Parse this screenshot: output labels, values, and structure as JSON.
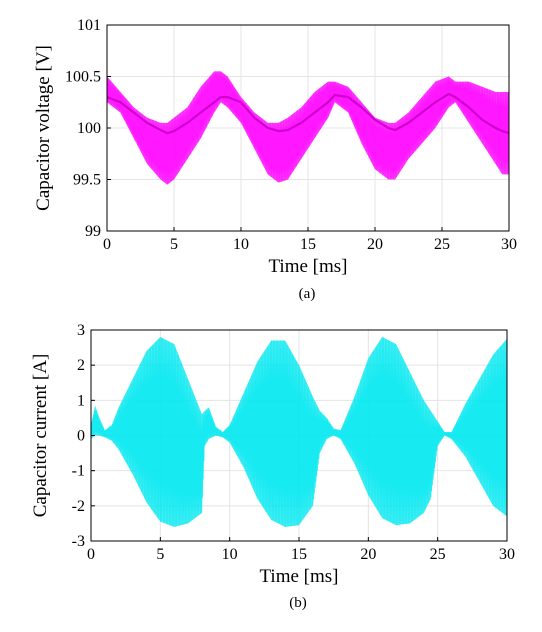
{
  "chart_data": [
    {
      "type": "line",
      "caption": "(a)",
      "xlabel": "Time [ms]",
      "ylabel": "Capacitor voltage [V]",
      "xlim": [
        0,
        30
      ],
      "ylim": [
        99,
        101
      ],
      "xticks": [
        0,
        5,
        10,
        15,
        20,
        25,
        30
      ],
      "xtick_labels": [
        "0",
        "5",
        "10",
        "15",
        "20",
        "25",
        "30"
      ],
      "yticks": [
        99,
        99.5,
        100,
        100.5,
        101
      ],
      "ytick_labels": [
        "99",
        "99.5",
        "100",
        "100.5",
        "101"
      ],
      "grid": true,
      "color": "#ff00ff",
      "series": [
        {
          "x": [
            0,
            1,
            2,
            3,
            4,
            4.5,
            5,
            6,
            7,
            8,
            8.5,
            9,
            10,
            11,
            12,
            12.8,
            13.5,
            14.5,
            15.5,
            16.5,
            17,
            18,
            19,
            20,
            21,
            21.5,
            22.5,
            23.5,
            24.5,
            25.5,
            26,
            27,
            28,
            29,
            29.5,
            30
          ],
          "upper": [
            100.5,
            100.35,
            100.2,
            100.1,
            100.05,
            100.05,
            100.1,
            100.2,
            100.4,
            100.55,
            100.55,
            100.5,
            100.3,
            100.15,
            100.05,
            100.05,
            100.1,
            100.2,
            100.35,
            100.45,
            100.45,
            100.4,
            100.25,
            100.1,
            100.05,
            100.05,
            100.15,
            100.3,
            100.45,
            100.5,
            100.45,
            100.45,
            100.4,
            100.35,
            100.35,
            100.35
          ],
          "center": [
            100.3,
            100.25,
            100.15,
            100.05,
            99.98,
            99.95,
            99.97,
            100.05,
            100.15,
            100.25,
            100.3,
            100.3,
            100.25,
            100.1,
            100.0,
            99.97,
            99.98,
            100.05,
            100.15,
            100.25,
            100.32,
            100.3,
            100.2,
            100.08,
            100.0,
            99.98,
            100.05,
            100.15,
            100.25,
            100.33,
            100.3,
            100.2,
            100.08,
            100.0,
            99.97,
            99.95
          ],
          "lower": [
            100.25,
            100.15,
            99.9,
            99.65,
            99.5,
            99.45,
            99.5,
            99.7,
            99.9,
            100.15,
            100.25,
            100.2,
            100.05,
            99.8,
            99.55,
            99.47,
            99.5,
            99.7,
            99.9,
            100.1,
            100.25,
            100.15,
            99.85,
            99.6,
            99.5,
            99.5,
            99.7,
            99.85,
            100.0,
            100.2,
            100.25,
            100.05,
            99.85,
            99.65,
            99.55,
            99.55
          ]
        }
      ]
    },
    {
      "type": "line",
      "caption": "(b)",
      "xlabel": "Time [ms]",
      "ylabel": "Capacitor current [A]",
      "xlim": [
        0,
        30
      ],
      "ylim": [
        -3,
        3
      ],
      "xticks": [
        0,
        5,
        10,
        15,
        20,
        25,
        30
      ],
      "xtick_labels": [
        "0",
        "5",
        "10",
        "15",
        "20",
        "25",
        "30"
      ],
      "yticks": [
        -3,
        -2,
        -1,
        0,
        1,
        2,
        3
      ],
      "ytick_labels": [
        "-3",
        "-2",
        "-1",
        "0",
        "1",
        "2",
        "3"
      ],
      "grid": true,
      "color": "#00e8f0",
      "series": [
        {
          "x": [
            0,
            0.3,
            0.6,
            1,
            1.5,
            2,
            3,
            4,
            5,
            6,
            7,
            8,
            8.2,
            8.5,
            9,
            9.5,
            10,
            11,
            12,
            13,
            14,
            15,
            16,
            16.5,
            17,
            17.5,
            18,
            19,
            20,
            21,
            22,
            23,
            24,
            24.5,
            25,
            25.5,
            26,
            27,
            28,
            29,
            30
          ],
          "upper": [
            0.3,
            0.85,
            0.5,
            0.15,
            0.3,
            0.8,
            1.6,
            2.4,
            2.8,
            2.6,
            1.6,
            0.6,
            0.7,
            0.8,
            0.25,
            0.1,
            0.3,
            1.2,
            2.1,
            2.7,
            2.7,
            2.0,
            1.1,
            0.7,
            0.5,
            0.2,
            0.15,
            1.1,
            2.2,
            2.8,
            2.6,
            1.8,
            1.0,
            0.7,
            0.4,
            0.1,
            0.1,
            0.9,
            1.6,
            2.3,
            2.75
          ],
          "lower": [
            -0.1,
            0.0,
            0.0,
            -0.05,
            -0.15,
            -0.4,
            -1.1,
            -1.9,
            -2.45,
            -2.6,
            -2.5,
            -2.2,
            -0.3,
            -0.1,
            0.0,
            -0.05,
            -0.2,
            -0.9,
            -1.8,
            -2.4,
            -2.6,
            -2.55,
            -2.0,
            -0.5,
            -0.1,
            0.0,
            -0.1,
            -0.8,
            -1.7,
            -2.35,
            -2.55,
            -2.5,
            -2.2,
            -1.8,
            -0.3,
            0.0,
            -0.1,
            -0.6,
            -1.3,
            -2.0,
            -2.3
          ]
        }
      ]
    }
  ]
}
